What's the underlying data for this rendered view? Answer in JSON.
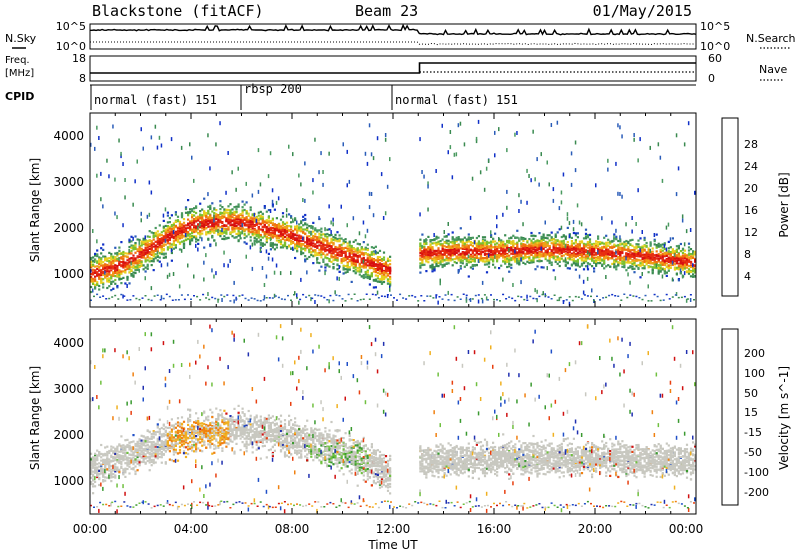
{
  "header": {
    "station": "Blackstone (fitACF)",
    "beam": "Beam 23",
    "date": "01/May/2015"
  },
  "left_labels": {
    "nsky": "N.Sky",
    "freq_line1": "Freq.",
    "freq_line2": "[MHz]",
    "cpid": "CPID"
  },
  "right_labels": {
    "nsearch": "N.Search",
    "nave": "Nave"
  },
  "top_strips": {
    "noise_ticks_left": [
      "10^5",
      "10^0"
    ],
    "noise_ticks_right": [
      "10^5",
      "10^0"
    ],
    "freq_ticks": [
      "18",
      "8"
    ],
    "nave_ticks": [
      "60",
      "0"
    ]
  },
  "cpid_segments": [
    {
      "label": "normal (fast) 151",
      "start_hour": 0
    },
    {
      "label": "rbsp 200",
      "start_hour": 6
    },
    {
      "label": "normal (fast) 151",
      "start_hour": 12
    }
  ],
  "time_axis": {
    "label": "Time UT",
    "ticks": [
      "00:00",
      "04:00",
      "08:00",
      "12:00",
      "16:00",
      "20:00",
      "00:00"
    ]
  },
  "power_panel": {
    "ylabel": "Slant Range [km]",
    "yticks": [
      "4000",
      "3000",
      "2000",
      "1000"
    ],
    "colorbar_label": "Power [dB]",
    "colorbar_ticks": [
      "28",
      "24",
      "20",
      "16",
      "12",
      "8",
      "4"
    ]
  },
  "velocity_panel": {
    "ylabel": "Slant Range [km]",
    "yticks": [
      "4000",
      "3000",
      "2000",
      "1000"
    ],
    "colorbar_label": "Velocity [m s^-1]",
    "colorbar_ticks": [
      "200",
      "100",
      "50",
      "15",
      "-15",
      "-50",
      "-100",
      "-200"
    ]
  },
  "colors": {
    "power_scale": [
      "#1030c8",
      "#2a5cb8",
      "#3a8a50",
      "#4a9a60",
      "#7ac030",
      "#e8d020",
      "#f0a018",
      "#f07010",
      "#e83010",
      "#d81010"
    ],
    "velocity_scale": [
      "#2030b0",
      "#2050c8",
      "#3a9a30",
      "#70c040",
      "#c8c8c0",
      "#c8c8c0",
      "#f0b020",
      "#f08010",
      "#e84010",
      "#d01010"
    ]
  },
  "chart_data": [
    {
      "type": "heatmap",
      "title": "Power",
      "xlabel": "Time UT",
      "ylabel": "Slant Range [km]",
      "xlim": [
        0,
        24
      ],
      "ylim": [
        200,
        4500
      ],
      "colorbar_range": [
        0,
        30
      ],
      "main_echo_band": {
        "x_hours": [
          0,
          1,
          2,
          3,
          4,
          5,
          6,
          7,
          8,
          9,
          10,
          11,
          12,
          13,
          14,
          16,
          18,
          20,
          22,
          24
        ],
        "range_km": [
          950,
          1100,
          1400,
          1750,
          2050,
          2100,
          2100,
          1950,
          1800,
          1600,
          1400,
          1200,
          1000,
          1400,
          1450,
          1450,
          1500,
          1450,
          1350,
          1200
        ],
        "power_db": [
          28,
          26,
          24,
          22,
          20,
          20,
          20,
          18,
          16,
          16,
          18,
          22,
          26,
          26,
          24,
          24,
          24,
          24,
          26,
          28
        ]
      }
    },
    {
      "type": "heatmap",
      "title": "Velocity",
      "xlabel": "Time UT",
      "ylabel": "Slant Range [km]",
      "xlim": [
        0,
        24
      ],
      "ylim": [
        200,
        4500
      ],
      "colorbar_range": [
        -250,
        250
      ],
      "main_echo_band": {
        "x_hours": [
          0,
          2,
          4,
          6,
          8,
          10,
          12,
          13,
          16,
          20,
          24
        ],
        "range_km": [
          1200,
          1600,
          2000,
          2100,
          1900,
          1600,
          1100,
          1400,
          1450,
          1450,
          1400
        ],
        "velocity_ms": [
          0,
          -20,
          -60,
          0,
          0,
          30,
          0,
          0,
          0,
          0,
          -30
        ]
      }
    }
  ]
}
